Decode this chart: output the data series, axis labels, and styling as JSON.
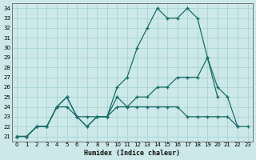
{
  "xlabel": "Humidex (Indice chaleur)",
  "background_color": "#cce8e8",
  "grid_color": "#aad4d4",
  "line_color": "#1a6e6a",
  "xlim": [
    -0.5,
    23.5
  ],
  "ylim": [
    20.5,
    34.5
  ],
  "xticks": [
    0,
    1,
    2,
    3,
    4,
    5,
    6,
    7,
    8,
    9,
    10,
    11,
    12,
    13,
    14,
    15,
    16,
    17,
    18,
    19,
    20,
    21,
    22,
    23
  ],
  "yticks": [
    21,
    22,
    23,
    24,
    25,
    26,
    27,
    28,
    29,
    30,
    31,
    32,
    33,
    34
  ],
  "lines": [
    {
      "x": [
        0,
        1,
        2,
        3,
        4,
        5,
        6,
        7,
        8,
        9,
        10,
        11,
        12,
        13,
        14,
        15,
        16,
        17,
        18,
        19,
        20
      ],
      "y": [
        21,
        21,
        22,
        22,
        24,
        25,
        23,
        22,
        23,
        23,
        26,
        27,
        30,
        32,
        34,
        33,
        33,
        34,
        33,
        29,
        25
      ]
    },
    {
      "x": [
        0,
        1,
        2,
        3,
        4,
        5,
        6,
        7,
        8,
        9,
        10,
        11,
        12,
        13,
        14,
        15,
        16,
        17,
        18,
        19,
        20,
        21,
        22,
        23
      ],
      "y": [
        21,
        21,
        22,
        22,
        24,
        24,
        23,
        23,
        23,
        23,
        24,
        24,
        25,
        25,
        26,
        26,
        27,
        27,
        27,
        29,
        26,
        25,
        22,
        null
      ]
    },
    {
      "x": [
        0,
        1,
        2,
        3,
        4,
        5,
        6,
        7,
        8,
        9,
        10,
        11,
        12,
        13,
        14,
        15,
        16,
        17,
        18,
        19,
        20,
        21,
        22,
        23
      ],
      "y": [
        21,
        21,
        22,
        22,
        24,
        25,
        23,
        22,
        23,
        23,
        25,
        24,
        24,
        24,
        24,
        24,
        24,
        23,
        23,
        23,
        23,
        23,
        22,
        22
      ]
    }
  ]
}
